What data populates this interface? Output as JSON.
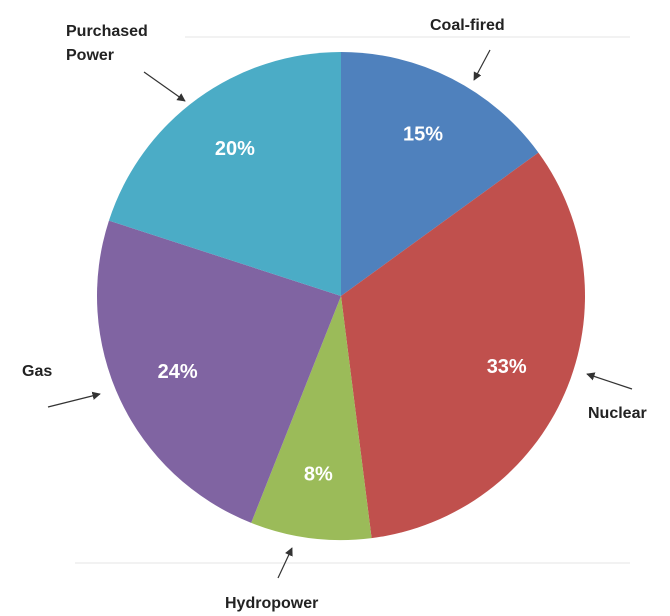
{
  "chart_data": {
    "type": "pie",
    "categories": [
      "Coal-fired",
      "Nuclear",
      "Hydropower",
      "Gas",
      "Purchased Power"
    ],
    "values": [
      15,
      33,
      8,
      24,
      20
    ],
    "value_labels": [
      "15%",
      "33%",
      "8%",
      "24%",
      "20%"
    ],
    "colors": [
      "#4f81bd",
      "#c0504d",
      "#9bbb59",
      "#8064a2",
      "#4bacc6"
    ]
  }
}
